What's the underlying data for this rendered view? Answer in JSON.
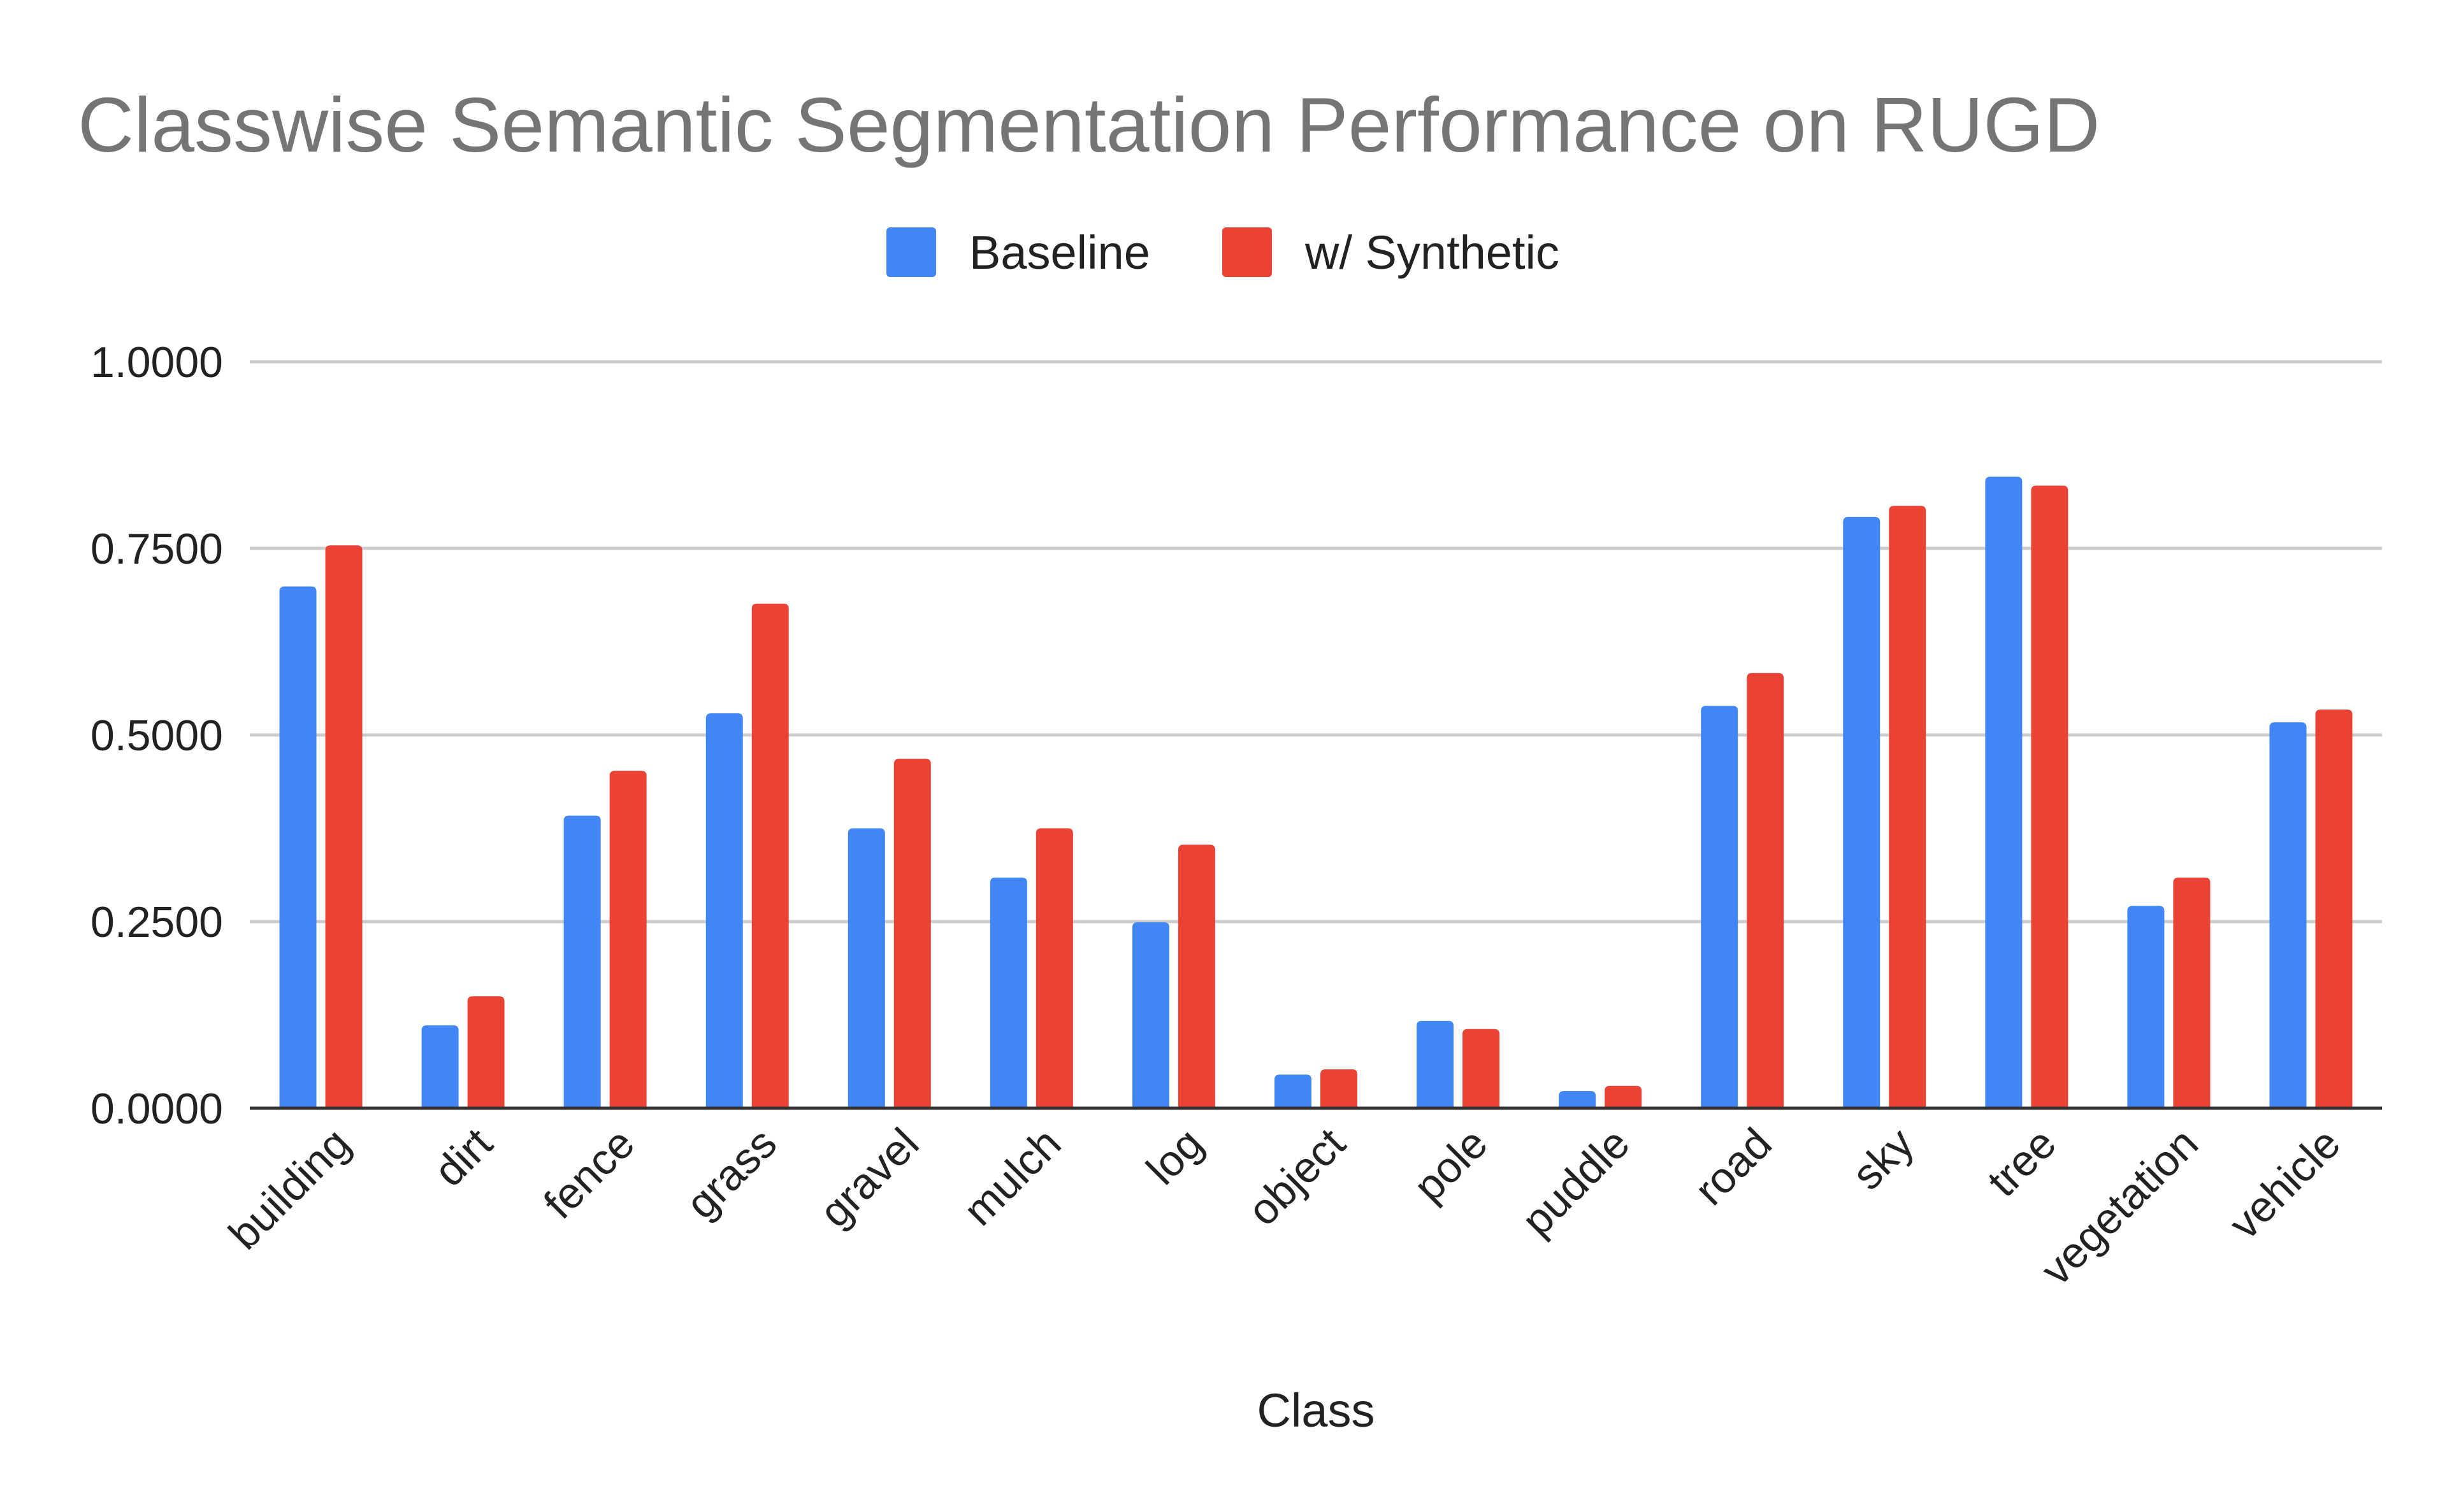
{
  "chart_data": {
    "type": "bar",
    "title": "Classwise Semantic Segmentation Performance on RUGD",
    "xlabel": "Class",
    "ylabel": "",
    "ylim": [
      0,
      1
    ],
    "yticks": [
      "0.0000",
      "0.2500",
      "0.5000",
      "0.7500",
      "1.0000"
    ],
    "ytick_values": [
      0,
      0.25,
      0.5,
      0.75,
      1.0
    ],
    "grid": true,
    "legend_position": "top-center",
    "categories": [
      "building",
      "dirt",
      "fence",
      "grass",
      "gravel",
      "mulch",
      "log",
      "object",
      "pole",
      "puddle",
      "road",
      "sky",
      "tree",
      "vegetation",
      "vehicle"
    ],
    "series": [
      {
        "name": "Baseline",
        "color": "#4285f4",
        "values": [
          0.699,
          0.111,
          0.392,
          0.529,
          0.375,
          0.309,
          0.249,
          0.045,
          0.117,
          0.023,
          0.539,
          0.792,
          0.846,
          0.271,
          0.517
        ]
      },
      {
        "name": "w/ Synthetic",
        "color": "#ea4335",
        "values": [
          0.754,
          0.15,
          0.452,
          0.676,
          0.468,
          0.375,
          0.353,
          0.052,
          0.106,
          0.03,
          0.583,
          0.807,
          0.834,
          0.309,
          0.534
        ]
      }
    ]
  }
}
